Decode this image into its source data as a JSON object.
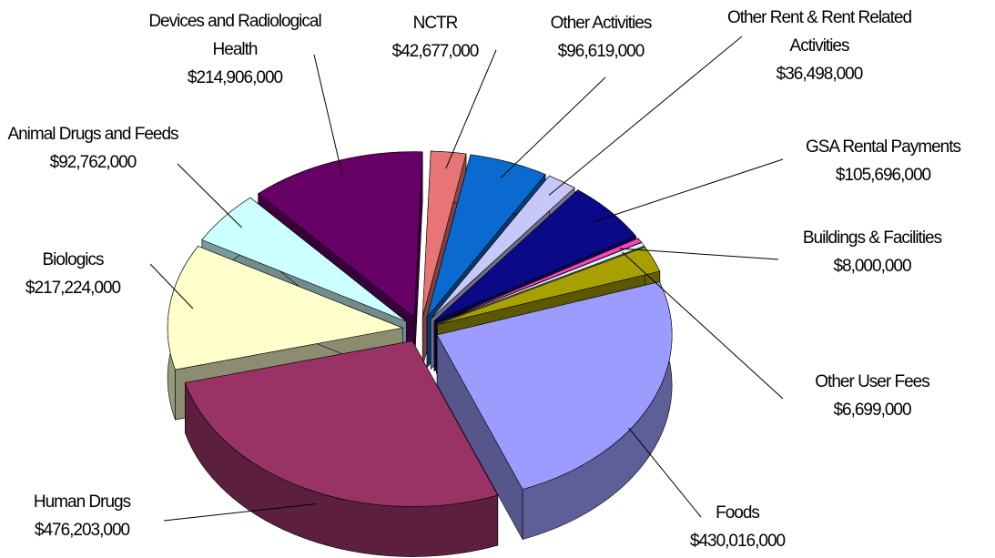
{
  "chart_data": {
    "type": "pie",
    "categories": [
      "NCTR",
      "Other Activities",
      "Other Rent & Rent Related Activities",
      "GSA Rental Payments",
      "Buildings & Facilities",
      "Other User Fees",
      null,
      "Foods",
      "Human Drugs",
      "Biologics",
      "Animal Drugs and Feeds",
      "Devices and Radiological Health"
    ],
    "values": [
      42677000,
      96619000,
      36498000,
      105696000,
      8000000,
      6699000,
      45000000,
      430016000,
      476203000,
      217224000,
      92762000,
      214906000
    ],
    "value_labels": [
      "$42,677,000",
      "$96,619,000",
      "$36,498,000",
      "$105,696,000",
      "$8,000,000",
      "$6,699,000",
      null,
      "$430,016,000",
      "$476,203,000",
      "$217,224,000",
      "$92,762,000",
      "$214,906,000"
    ],
    "colors": [
      "#e87575",
      "#0a6ad0",
      "#c8c8f8",
      "#0a0a88",
      "#ff40c0",
      "#d8f0f0",
      "#a8a000",
      "#9c9cff",
      "#993366",
      "#ffffcc",
      "#ccffff",
      "#660066"
    ]
  }
}
